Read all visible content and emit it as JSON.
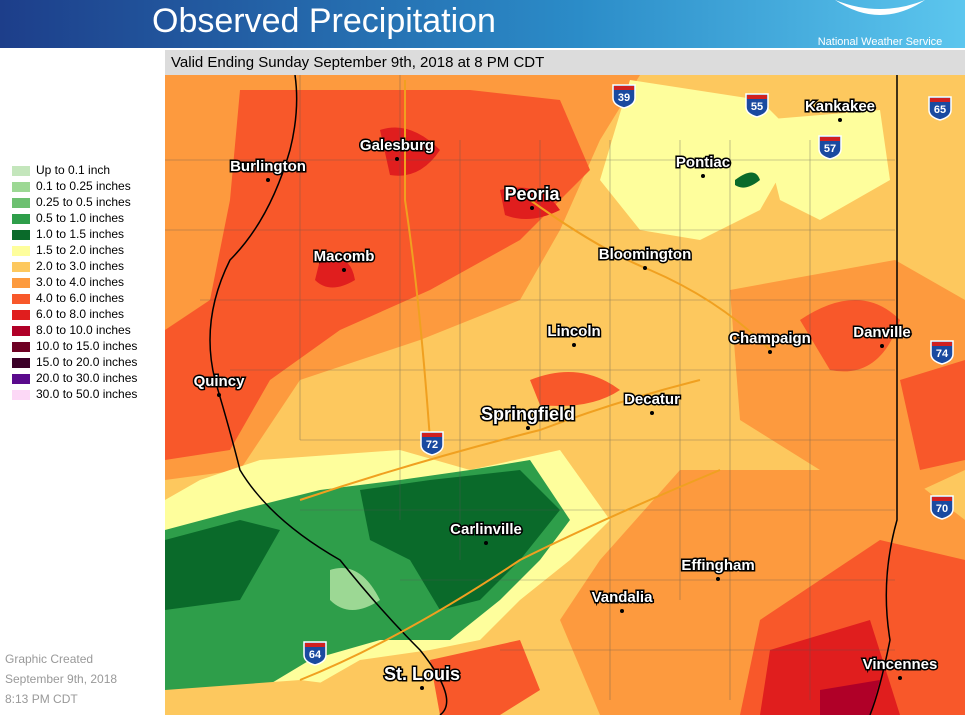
{
  "header": {
    "title": "Observed Precipitation",
    "agency": "National Weather Service"
  },
  "subtitle": "Valid Ending Sunday September 9th, 2018 at 8 PM CDT",
  "legend": [
    {
      "label": "Up to 0.1 inch",
      "color": "#c4e6bc"
    },
    {
      "label": "0.1 to 0.25 inches",
      "color": "#9cd894"
    },
    {
      "label": "0.25 to 0.5 inches",
      "color": "#6cc070"
    },
    {
      "label": "0.5 to 1.0 inches",
      "color": "#2e9e4a"
    },
    {
      "label": "1.0 to 1.5 inches",
      "color": "#0a6a2a"
    },
    {
      "label": "1.5 to 2.0 inches",
      "color": "#fefe9c"
    },
    {
      "label": "2.0 to 3.0 inches",
      "color": "#fdc85e"
    },
    {
      "label": "3.0 to 4.0 inches",
      "color": "#fd9a3e"
    },
    {
      "label": "4.0 to 6.0 inches",
      "color": "#f8582a"
    },
    {
      "label": "6.0 to 8.0 inches",
      "color": "#e01e1e"
    },
    {
      "label": "8.0 to 10.0 inches",
      "color": "#b00028"
    },
    {
      "label": "10.0 to 15.0 inches",
      "color": "#6e0024"
    },
    {
      "label": "15.0 to 20.0 inches",
      "color": "#3c0028"
    },
    {
      "label": "20.0 to 30.0 inches",
      "color": "#5a0a8c"
    },
    {
      "label": "30.0 to 50.0 inches",
      "color": "#fcd8f6"
    }
  ],
  "cities": [
    "Galesburg",
    "Burlington",
    "Peoria",
    "Macomb",
    "Quincy",
    "Pontiac",
    "Kankakee",
    "Bloomington",
    "Lincoln",
    "Champaign",
    "Danville",
    "Springfield",
    "Decatur",
    "Carlinville",
    "Effingham",
    "Vandalia",
    "St. Louis",
    "Vincennes"
  ],
  "interstates": [
    "39",
    "55",
    "65",
    "57",
    "74",
    "72",
    "70",
    "64"
  ],
  "footer": [
    "Graphic Created",
    "September 9th, 2018",
    "8:13 PM CDT"
  ]
}
